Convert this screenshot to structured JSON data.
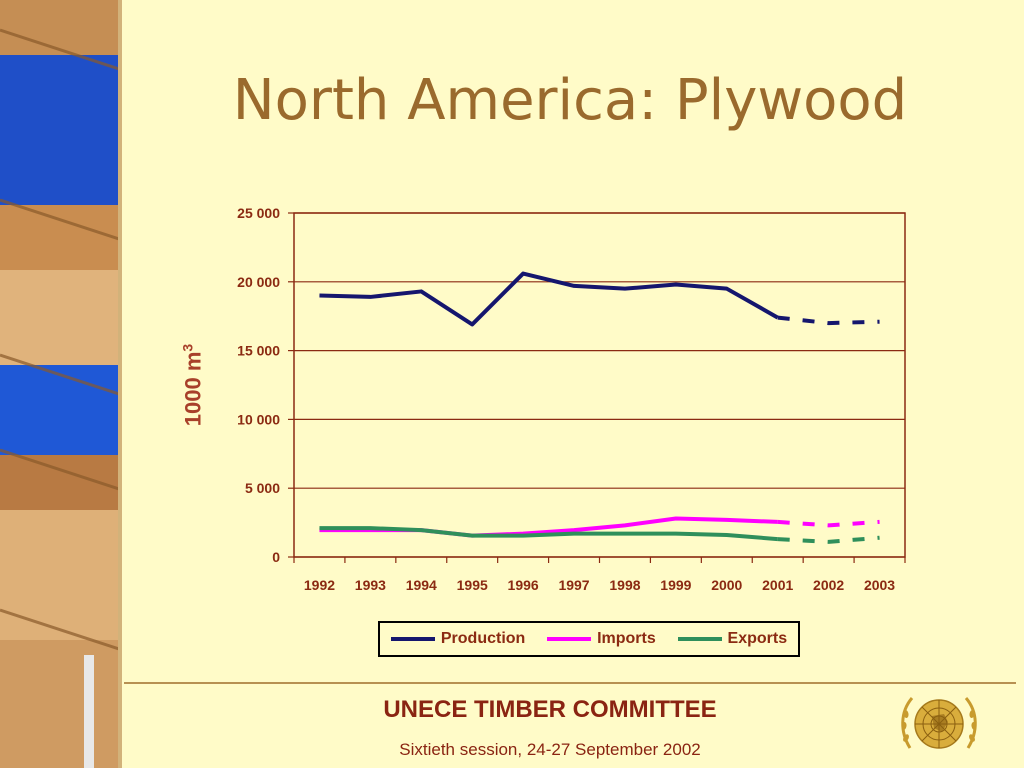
{
  "slide": {
    "title": "North America: Plywood",
    "footer_title": "UNECE TIMBER COMMITTEE",
    "footer_subtitle": "Sixtieth session, 24-27 September 2002"
  },
  "chart_data": {
    "type": "line",
    "ylabel": "1000 m",
    "ylabel_superscript": "3",
    "xlabel": "",
    "categories": [
      "1992",
      "1993",
      "1994",
      "1995",
      "1996",
      "1997",
      "1998",
      "1999",
      "2000",
      "2001",
      "2002",
      "2003"
    ],
    "y_ticks": [
      "0",
      "5 000",
      "10 000",
      "15 000",
      "20 000",
      "25 000"
    ],
    "ylim": [
      0,
      25000
    ],
    "grid": "horizontal",
    "legend_position": "bottom",
    "projection_start_index": 9,
    "series": [
      {
        "name": "Production",
        "color": "#15166e",
        "values": [
          19000,
          18900,
          19300,
          16900,
          20600,
          19700,
          19500,
          19800,
          19500,
          17400,
          17000,
          17100
        ]
      },
      {
        "name": "Imports",
        "color": "#ff00ff",
        "values": [
          1950,
          1950,
          1950,
          1550,
          1700,
          1950,
          2300,
          2800,
          2700,
          2550,
          2300,
          2550
        ]
      },
      {
        "name": "Exports",
        "color": "#2f8f5b",
        "values": [
          2100,
          2100,
          1950,
          1550,
          1550,
          1700,
          1700,
          1700,
          1600,
          1300,
          1100,
          1400
        ]
      }
    ]
  },
  "colors": {
    "background": "#fffbc8",
    "title": "#9a6a2d",
    "axis": "#8b2a12",
    "grid": "#8b2a12"
  }
}
